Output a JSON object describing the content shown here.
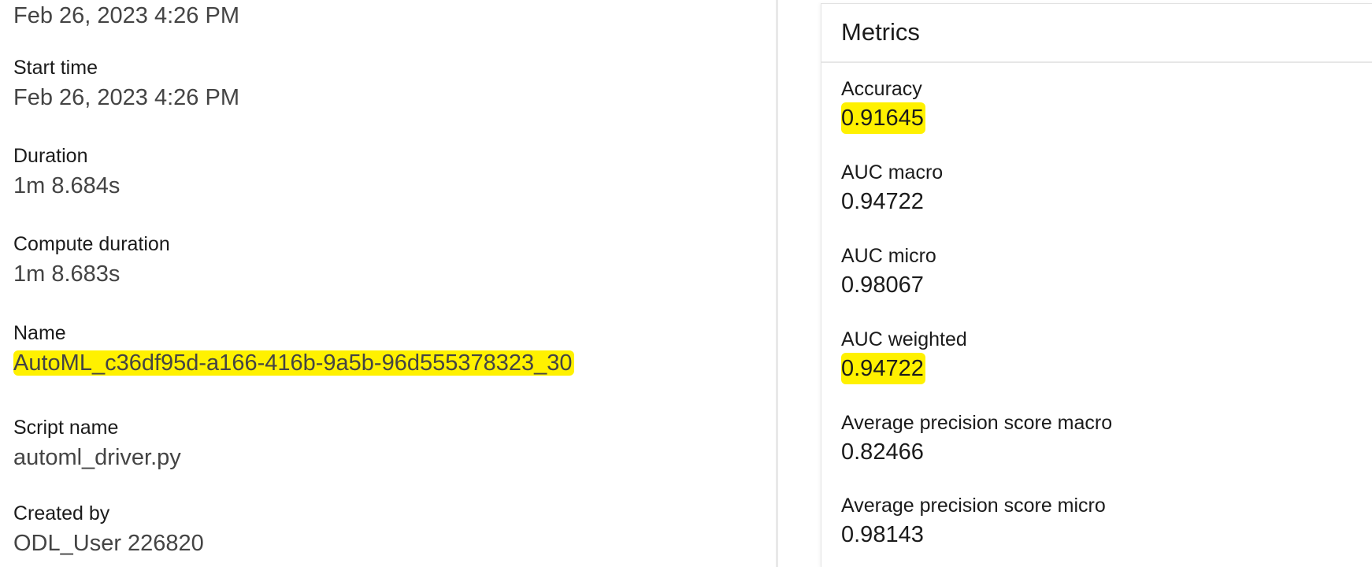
{
  "details": {
    "top_value": "Feb 26, 2023 4:26 PM",
    "properties": [
      {
        "label": "Start time",
        "value": "Feb 26, 2023 4:26 PM"
      },
      {
        "label": "Duration",
        "value": "1m 8.684s"
      },
      {
        "label": "Compute duration",
        "value": "1m 8.683s"
      },
      {
        "label": "Name",
        "value": "AutoML_c36df95d-a166-416b-9a5b-96d555378323_30"
      },
      {
        "label": "Script name",
        "value": "automl_driver.py"
      },
      {
        "label": "Created by",
        "value": "ODL_User 226820"
      }
    ]
  },
  "metrics": {
    "title": "Metrics",
    "items": [
      {
        "label": "Accuracy",
        "value": "0.91645"
      },
      {
        "label": "AUC macro",
        "value": "0.94722"
      },
      {
        "label": "AUC micro",
        "value": "0.98067"
      },
      {
        "label": "AUC weighted",
        "value": "0.94722"
      },
      {
        "label": "Average precision score macro",
        "value": "0.82466"
      },
      {
        "label": "Average precision score micro",
        "value": "0.98143"
      }
    ]
  },
  "colors": {
    "highlight": "#fff100",
    "label_text": "#1b1b1b",
    "value_text": "#444444",
    "divider": "#e6e6e6"
  }
}
